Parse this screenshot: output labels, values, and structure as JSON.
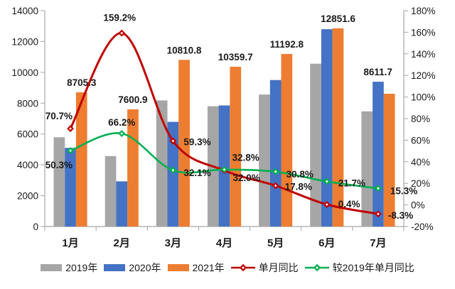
{
  "chart_data": {
    "type": "bar",
    "subtype": "grouped-bars-with-lines-combo",
    "title": "",
    "categories": [
      "1月",
      "2月",
      "3月",
      "4月",
      "5月",
      "6月",
      "7月"
    ],
    "bar_series": [
      {
        "name": "2019年",
        "color": "#a6a6a6",
        "values": [
          5790,
          4570,
          8180,
          7800,
          8560,
          10560,
          7470
        ]
      },
      {
        "name": "2020年",
        "color": "#4472c4",
        "values": [
          5100,
          2930,
          6790,
          7850,
          9500,
          12800,
          9390
        ]
      },
      {
        "name": "2021年",
        "color": "#ed7d31",
        "values": [
          8705.3,
          7600.9,
          10810.8,
          10359.7,
          11192.8,
          12851.6,
          8611.7
        ],
        "labels": [
          "8705.3",
          "7600.9",
          "10810.8",
          "10359.7",
          "11192.8",
          "12851.6",
          "8611.7"
        ]
      }
    ],
    "line_series": [
      {
        "name": "单月同比",
        "color": "#c00000",
        "axis": "right",
        "marker": "diamond",
        "values": [
          70.7,
          159.2,
          59.3,
          32.0,
          17.8,
          0.4,
          -8.3
        ],
        "labels": [
          "70.7%",
          "159.2%",
          "59.3%",
          "32.0%",
          "17.8%",
          "0.4%",
          "-8.3%"
        ]
      },
      {
        "name": "较2019年单月同比",
        "color": "#00b050",
        "axis": "right",
        "marker": "diamond",
        "values": [
          50.3,
          66.2,
          32.1,
          32.8,
          30.8,
          21.7,
          15.3
        ],
        "labels": [
          "50.3%",
          "66.2%",
          "32.1%",
          "32.8%",
          "30.8%",
          "21.7%",
          "15.3%"
        ]
      }
    ],
    "left_axis": {
      "min": 0,
      "max": 14000,
      "step": 2000,
      "ticks": [
        "0",
        "2000",
        "4000",
        "6000",
        "8000",
        "10000",
        "12000",
        "14000"
      ]
    },
    "right_axis": {
      "min": -20,
      "max": 180,
      "step": 20,
      "ticks": [
        "-20%",
        "0%",
        "20%",
        "40%",
        "60%",
        "80%",
        "100%",
        "120%",
        "140%",
        "160%",
        "180%"
      ]
    },
    "grid": false,
    "legend_position": "bottom",
    "text_color": "#1a1a1a",
    "axis_line_color": "#a6a6a6"
  }
}
